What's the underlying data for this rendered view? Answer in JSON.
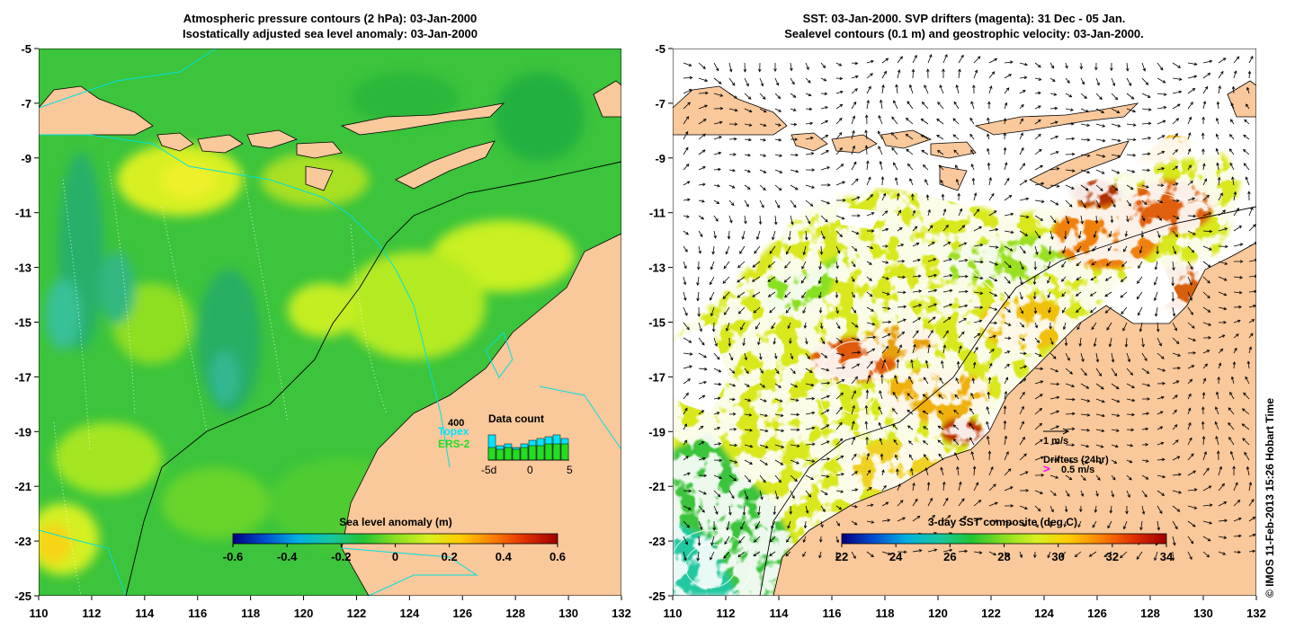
{
  "left_panel": {
    "title_line1": "Atmospheric pressure contours (2 hPa): 03-Jan-2000",
    "title_line2": "Isostatically adjusted sea level anomaly: 03-Jan-2000",
    "colorbar_label": "Sea level anomaly (m)",
    "colorbar_ticks": [
      "-0.6",
      "-0.4",
      "-0.2",
      "0",
      "0.2",
      "0.4",
      "0.6"
    ],
    "inset": {
      "title": "Data count",
      "max_label": "400",
      "series_topex": "Topex",
      "series_ers": "ERS-2",
      "x_ticks": [
        "-5d",
        "0",
        "5"
      ],
      "topex_color": "#00e5ff",
      "ers_color": "#22dd22"
    }
  },
  "right_panel": {
    "title_line1": "SST: 03-Jan-2000. SVP drifters (magenta): 31 Dec - 05 Jan.",
    "title_line2": "Sealevel contours (0.1 m) and geostrophic velocity: 03-Jan-2000.",
    "colorbar_label": "3-day SST composite (deg C)",
    "colorbar_ticks": [
      "22",
      "24",
      "26",
      "28",
      "30",
      "32",
      "34"
    ],
    "scale_label": "1 m/s",
    "drifters_label": "Drifters (24hr)",
    "drifters_speed": "0.5 m/s",
    "drifters_marker": ">"
  },
  "axes": {
    "y_ticks": [
      "-5",
      "-7",
      "-9",
      "-11",
      "-13",
      "-15",
      "-17",
      "-19",
      "-21",
      "-23",
      "-25"
    ],
    "x_ticks": [
      "110",
      "112",
      "114",
      "116",
      "118",
      "120",
      "122",
      "124",
      "126",
      "128",
      "130",
      "132"
    ]
  },
  "credit": "© IMOS 11-Feb-2013 15:26 Hobart Time",
  "colors": {
    "land": "#f9c89b",
    "sla_scale": [
      "#000080",
      "#0050d0",
      "#00b0e0",
      "#18c8a0",
      "#22c433",
      "#88e020",
      "#d8f020",
      "#ffcc00",
      "#ff8000",
      "#e03000",
      "#a00000"
    ],
    "sst_scale": [
      "#000080",
      "#0050d0",
      "#00b0e0",
      "#18c8a0",
      "#22c433",
      "#88e020",
      "#d8f020",
      "#ffcc00",
      "#ff8000",
      "#e03000",
      "#a00000"
    ]
  }
}
